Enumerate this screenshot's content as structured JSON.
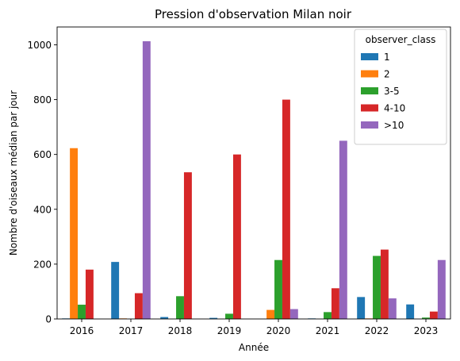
{
  "chart_data": {
    "type": "bar",
    "title": "Pression d'observation Milan noir",
    "xlabel": "Année",
    "ylabel": "Nombre d'oiseaux médian par jour",
    "categories": [
      "2016",
      "2017",
      "2018",
      "2019",
      "2020",
      "2021",
      "2022",
      "2023"
    ],
    "ylim": [
      0,
      1065
    ],
    "yticks": [
      0,
      200,
      400,
      600,
      800,
      1000
    ],
    "grid": false,
    "legend": {
      "title": "observer_class",
      "placement": "top-right"
    },
    "series": [
      {
        "name": "1",
        "color": "#1f77b4",
        "values": [
          2,
          208,
          7,
          4,
          0,
          2,
          80,
          53
        ]
      },
      {
        "name": "2",
        "color": "#ff7f0e",
        "values": [
          623,
          2,
          0,
          0,
          33,
          0,
          2,
          0
        ]
      },
      {
        "name": "3-5",
        "color": "#2ca02c",
        "values": [
          52,
          0,
          83,
          19,
          215,
          25,
          230,
          5
        ]
      },
      {
        "name": "4-10",
        "color": "#d62728",
        "values": [
          180,
          94,
          535,
          600,
          800,
          112,
          253,
          27
        ]
      },
      {
        "name": ">10",
        "color": "#9467bd",
        "values": [
          0,
          1013,
          0,
          0,
          36,
          650,
          75,
          215
        ]
      }
    ]
  }
}
